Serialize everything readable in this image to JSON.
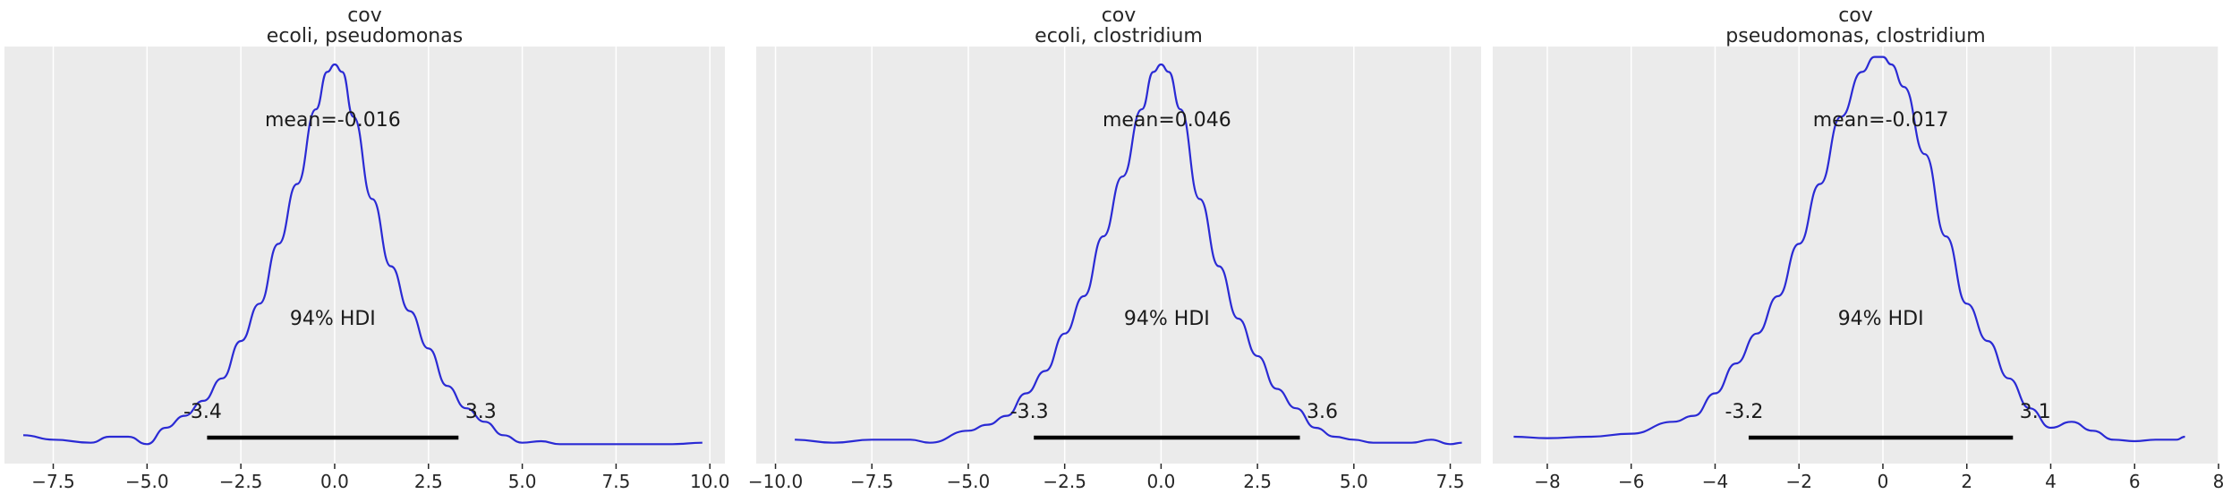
{
  "colors": {
    "kde": "#2a2ad4",
    "panel_background": "#ebebeb",
    "grid": "#ffffff"
  },
  "chart_data": [
    {
      "type": "line",
      "title": "cov",
      "subtitle": "ecoli, pseudomonas",
      "xlim": [
        -8.8,
        10.4
      ],
      "xticks": [
        -7.5,
        -5.0,
        -2.5,
        0.0,
        2.5,
        5.0,
        7.5,
        10.0
      ],
      "xtick_labels": [
        "−7.5",
        "−5.0",
        "−2.5",
        "0.0",
        "2.5",
        "5.0",
        "7.5",
        "10.0"
      ],
      "grid": true,
      "mean_label": "mean=-0.016",
      "hdi_label": "94% HDI",
      "hdi": {
        "low": -3.4,
        "high": 3.3,
        "low_label": "-3.4",
        "high_label": "3.3"
      },
      "density_x": [
        -8.3,
        -7.5,
        -6.5,
        -6.0,
        -5.5,
        -5.0,
        -4.5,
        -4.0,
        -3.5,
        -3.0,
        -2.5,
        -2.0,
        -1.5,
        -1.0,
        -0.5,
        -0.2,
        0.0,
        0.2,
        0.5,
        1.0,
        1.5,
        2.0,
        2.5,
        3.0,
        3.5,
        4.0,
        4.5,
        5.0,
        5.5,
        6.0,
        7.0,
        8.0,
        9.0,
        9.8
      ],
      "density_y": [
        0.007,
        0.004,
        0.002,
        0.006,
        0.006,
        0.001,
        0.012,
        0.02,
        0.03,
        0.045,
        0.07,
        0.095,
        0.135,
        0.175,
        0.225,
        0.25,
        0.255,
        0.25,
        0.22,
        0.165,
        0.12,
        0.09,
        0.065,
        0.04,
        0.025,
        0.016,
        0.007,
        0.002,
        0.003,
        0.001,
        0.001,
        0.001,
        0.001,
        0.002
      ]
    },
    {
      "type": "line",
      "title": "cov",
      "subtitle": "ecoli, clostridium",
      "xlim": [
        -10.5,
        8.3
      ],
      "xticks": [
        -10.0,
        -7.5,
        -5.0,
        -2.5,
        0.0,
        2.5,
        5.0,
        7.5
      ],
      "xtick_labels": [
        "−10.0",
        "−7.5",
        "−5.0",
        "−2.5",
        "0.0",
        "2.5",
        "5.0",
        "7.5"
      ],
      "grid": true,
      "mean_label": "mean=0.046",
      "hdi_label": "94% HDI",
      "hdi": {
        "low": -3.3,
        "high": 3.6,
        "low_label": "-3.3",
        "high_label": "3.6"
      },
      "density_x": [
        -9.5,
        -8.5,
        -7.5,
        -6.5,
        -6.0,
        -5.0,
        -4.5,
        -4.0,
        -3.5,
        -3.0,
        -2.5,
        -2.0,
        -1.5,
        -1.0,
        -0.5,
        -0.2,
        0.0,
        0.2,
        0.5,
        1.0,
        1.5,
        2.0,
        2.5,
        3.0,
        3.5,
        4.0,
        4.5,
        5.0,
        5.5,
        6.5,
        7.0,
        7.5,
        7.8
      ],
      "density_y": [
        0.004,
        0.002,
        0.004,
        0.004,
        0.002,
        0.01,
        0.014,
        0.02,
        0.035,
        0.05,
        0.075,
        0.1,
        0.14,
        0.18,
        0.225,
        0.25,
        0.255,
        0.25,
        0.225,
        0.165,
        0.12,
        0.085,
        0.06,
        0.038,
        0.025,
        0.012,
        0.006,
        0.004,
        0.002,
        0.002,
        0.004,
        0.001,
        0.002
      ]
    },
    {
      "type": "line",
      "title": "cov",
      "subtitle": "pseudomonas, clostridium",
      "xlim": [
        -9.3,
        8.0
      ],
      "xticks": [
        -8,
        -6,
        -4,
        -2,
        0,
        2,
        4,
        6,
        8
      ],
      "xtick_labels": [
        "−8",
        "−6",
        "−4",
        "−2",
        "0",
        "2",
        "4",
        "6",
        "8"
      ],
      "grid": true,
      "mean_label": "mean=-0.017",
      "hdi_label": "94% HDI",
      "hdi": {
        "low": -3.2,
        "high": 3.1,
        "low_label": "-3.2",
        "high_label": "3.1"
      },
      "density_x": [
        -8.8,
        -8.0,
        -7.0,
        -6.0,
        -5.0,
        -4.5,
        -4.0,
        -3.5,
        -3.0,
        -2.5,
        -2.0,
        -1.5,
        -1.0,
        -0.5,
        -0.2,
        0.0,
        0.2,
        0.5,
        1.0,
        1.5,
        2.0,
        2.5,
        3.0,
        3.5,
        4.0,
        4.5,
        5.0,
        5.5,
        6.0,
        6.5,
        7.0,
        7.2
      ],
      "density_y": [
        0.006,
        0.005,
        0.006,
        0.008,
        0.016,
        0.02,
        0.035,
        0.055,
        0.075,
        0.1,
        0.135,
        0.175,
        0.22,
        0.25,
        0.26,
        0.26,
        0.255,
        0.24,
        0.195,
        0.14,
        0.095,
        0.07,
        0.045,
        0.025,
        0.012,
        0.016,
        0.01,
        0.004,
        0.003,
        0.004,
        0.004,
        0.006
      ]
    }
  ]
}
